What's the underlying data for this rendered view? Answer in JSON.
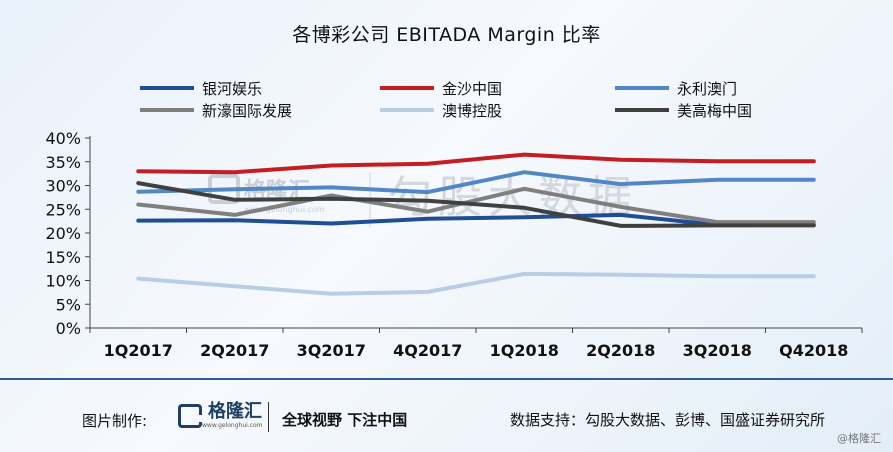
{
  "footer": {
    "made_by": "图片制作:",
    "brand": "格隆汇",
    "brand_url": "www.gelonghui.com",
    "slogan": "全球视野 下注中国",
    "source": "数据支持：勾股大数据、彭博、国盛证券研究所",
    "copyright": "@格隆汇"
  },
  "watermark": {
    "brand": "格隆汇",
    "url": "www.gelonghui.com",
    "data": "勾股大数据"
  },
  "chart_data": {
    "type": "line",
    "title": "各博彩公司 EBITADA Margin 比率",
    "categories": [
      "1Q2017",
      "2Q2017",
      "3Q2017",
      "4Q2017",
      "1Q2018",
      "2Q2018",
      "3Q2018",
      "Q42018"
    ],
    "y_ticks": [
      "0%",
      "5%",
      "10%",
      "15%",
      "20%",
      "25%",
      "30%",
      "35%",
      "40%"
    ],
    "ylim": [
      0,
      40
    ],
    "grid": false,
    "legend_position": "top",
    "series": [
      {
        "name": "银河娱乐",
        "color": "#1f4e96",
        "values": [
          22.6,
          22.7,
          22.0,
          23.0,
          23.3,
          23.8,
          21.7,
          21.7
        ]
      },
      {
        "name": "金沙中国",
        "color": "#c41e22",
        "values": [
          33.0,
          32.8,
          34.2,
          34.6,
          36.5,
          35.4,
          35.1,
          35.1
        ]
      },
      {
        "name": "永利澳门",
        "color": "#5187c4",
        "values": [
          28.7,
          29.2,
          29.6,
          28.6,
          32.8,
          30.3,
          31.2,
          31.2
        ]
      },
      {
        "name": "新濠国际发展",
        "color": "#7f7f7f",
        "values": [
          26.0,
          23.8,
          27.9,
          24.5,
          29.3,
          25.5,
          22.3,
          22.3
        ]
      },
      {
        "name": "澳博控股",
        "color": "#b8cde6",
        "values": [
          10.4,
          8.8,
          7.2,
          7.6,
          11.4,
          11.2,
          10.9,
          10.9
        ]
      },
      {
        "name": "美高梅中国",
        "color": "#404040",
        "values": [
          30.5,
          27.0,
          27.2,
          26.8,
          25.3,
          21.5,
          21.6,
          21.6
        ]
      }
    ]
  }
}
